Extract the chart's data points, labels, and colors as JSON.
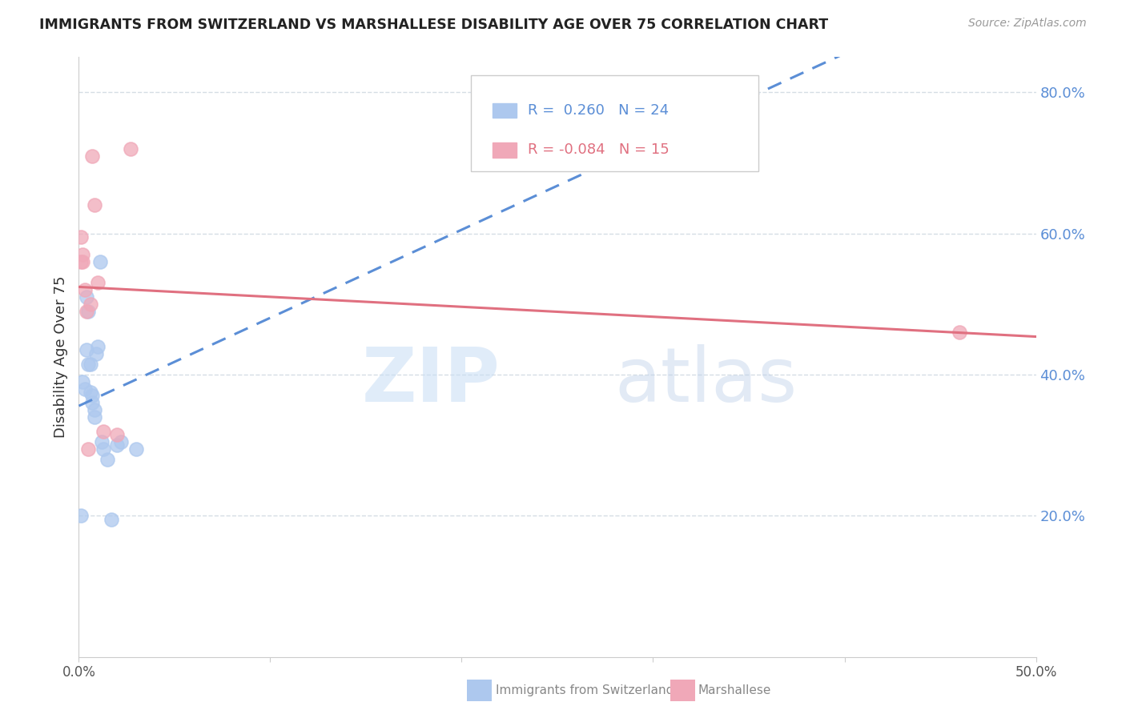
{
  "title": "IMMIGRANTS FROM SWITZERLAND VS MARSHALLESE DISABILITY AGE OVER 75 CORRELATION CHART",
  "source": "Source: ZipAtlas.com",
  "ylabel": "Disability Age Over 75",
  "xlim": [
    0.0,
    0.5
  ],
  "ylim": [
    0.0,
    0.85
  ],
  "yticks": [
    0.2,
    0.4,
    0.6,
    0.8
  ],
  "ytick_labels": [
    "20.0%",
    "40.0%",
    "60.0%",
    "80.0%"
  ],
  "xticks": [
    0.0,
    0.1,
    0.2,
    0.3,
    0.4,
    0.5
  ],
  "xtick_labels": [
    "0.0%",
    "",
    "",
    "",
    "",
    "50.0%"
  ],
  "swiss_R": 0.26,
  "swiss_N": 24,
  "marsh_R": -0.084,
  "marsh_N": 15,
  "swiss_color": "#adc8ee",
  "marsh_color": "#f0a8b8",
  "swiss_line_color": "#5b8ed6",
  "marsh_line_color": "#e07080",
  "swiss_x": [
    0.001,
    0.002,
    0.003,
    0.004,
    0.004,
    0.005,
    0.005,
    0.006,
    0.006,
    0.007,
    0.007,
    0.008,
    0.008,
    0.009,
    0.01,
    0.011,
    0.012,
    0.013,
    0.015,
    0.017,
    0.02,
    0.022,
    0.03,
    0.27
  ],
  "swiss_y": [
    0.2,
    0.39,
    0.38,
    0.51,
    0.435,
    0.49,
    0.415,
    0.415,
    0.375,
    0.37,
    0.36,
    0.35,
    0.34,
    0.43,
    0.44,
    0.56,
    0.305,
    0.295,
    0.28,
    0.195,
    0.3,
    0.305,
    0.295,
    0.72
  ],
  "marsh_x": [
    0.001,
    0.001,
    0.002,
    0.002,
    0.003,
    0.004,
    0.005,
    0.006,
    0.007,
    0.008,
    0.01,
    0.013,
    0.02,
    0.027,
    0.46
  ],
  "marsh_y": [
    0.56,
    0.595,
    0.57,
    0.56,
    0.52,
    0.49,
    0.295,
    0.5,
    0.71,
    0.64,
    0.53,
    0.32,
    0.315,
    0.72,
    0.46
  ],
  "watermark_zip": "ZIP",
  "watermark_atlas": "atlas",
  "background_color": "#ffffff",
  "grid_color": "#d5dde5"
}
